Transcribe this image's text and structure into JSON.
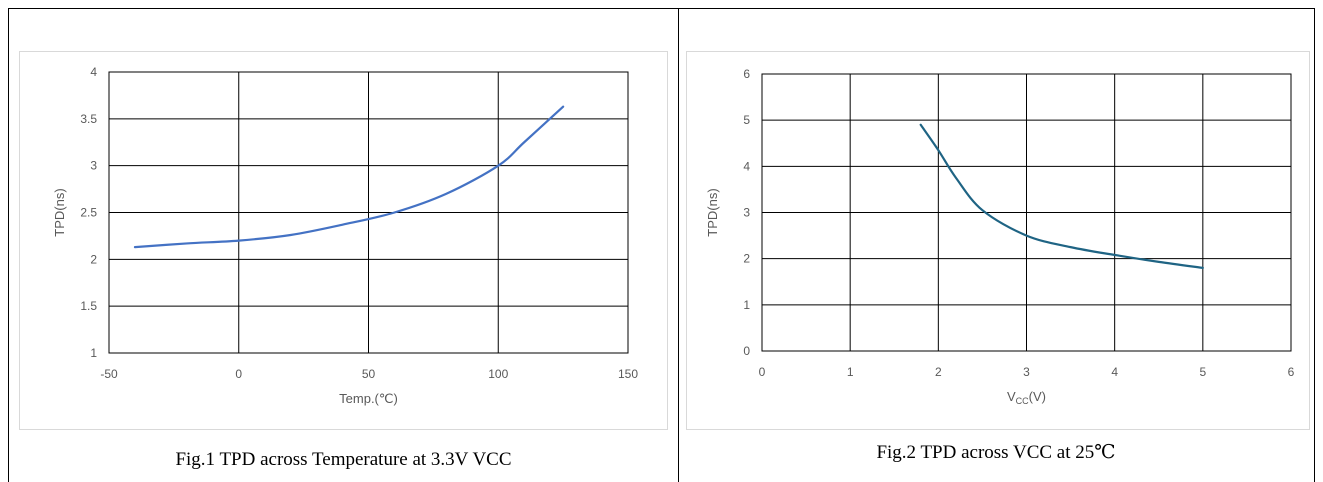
{
  "figures": [
    {
      "caption": "Fig.1 TPD across Temperature at 3.3V VCC",
      "chart_data": {
        "type": "line",
        "xlabel": "Temp.(℃)",
        "ylabel": "TPD(ns)",
        "xlim": [
          -50,
          150
        ],
        "ylim": [
          1,
          4
        ],
        "xticks": [
          "-50",
          "0",
          "50",
          "100",
          "150"
        ],
        "yticks": [
          "1",
          "1.5",
          "2",
          "2.5",
          "3",
          "3.5",
          "4"
        ],
        "grid": true,
        "series": [
          {
            "color": "#4472c4",
            "x": [
              -40,
              -20,
              0,
              20,
              40,
              60,
              80,
              100,
              110,
              125
            ],
            "y": [
              2.13,
              2.17,
              2.2,
              2.26,
              2.37,
              2.5,
              2.7,
              3.0,
              3.25,
              3.63
            ]
          }
        ]
      }
    },
    {
      "caption": "Fig.2 TPD across VCC at 25℃",
      "chart_data": {
        "type": "line",
        "xlabel": "VCC(V)",
        "xlabel_main": "V",
        "xlabel_sub": "CC",
        "xlabel_tail": "(V)",
        "ylabel": "TPD(ns)",
        "xlim": [
          0,
          6
        ],
        "ylim": [
          0,
          6
        ],
        "xticks": [
          "0",
          "1",
          "2",
          "3",
          "4",
          "5",
          "6"
        ],
        "yticks": [
          "0",
          "1",
          "2",
          "3",
          "4",
          "5",
          "6"
        ],
        "grid": true,
        "series": [
          {
            "color": "#1f6484",
            "x": [
              1.8,
              2.0,
              2.2,
              2.5,
              3.0,
              3.5,
              4.0,
              4.5,
              5.0
            ],
            "y": [
              4.9,
              4.35,
              3.75,
              3.05,
              2.5,
              2.25,
              2.08,
              1.93,
              1.8
            ]
          }
        ]
      }
    }
  ]
}
